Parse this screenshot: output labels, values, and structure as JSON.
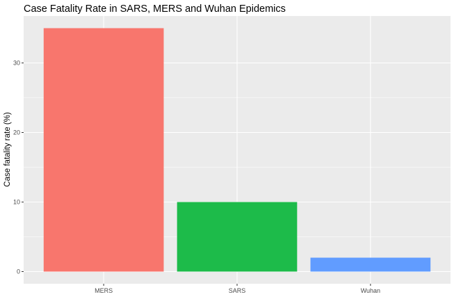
{
  "chart_data": {
    "type": "bar",
    "title": "Case Fatality Rate in SARS, MERS and Wuhan Epidemics",
    "xlabel": "",
    "ylabel": "Case fatality rate (%)",
    "categories": [
      "MERS",
      "SARS",
      "Wuhan"
    ],
    "values": [
      35,
      10,
      2
    ],
    "colors": [
      "#F8766D",
      "#1DBB4A",
      "#619CFF"
    ],
    "ylim": [
      -1.75,
      36.75
    ],
    "yticks": [
      0,
      10,
      20,
      30
    ],
    "grid": true,
    "legend": "none",
    "panel_background": "#EBEBEB",
    "grid_color": "#FFFFFF"
  }
}
